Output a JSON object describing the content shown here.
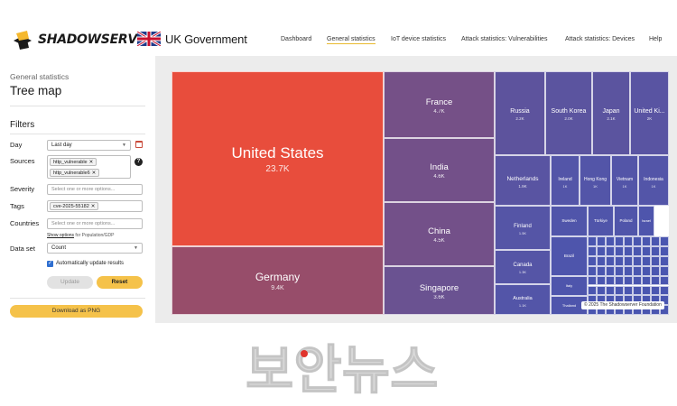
{
  "brand": {
    "logo_text": "SHADOWSERVER",
    "partner": "UK Government"
  },
  "nav": [
    {
      "label": "Dashboard",
      "active": false
    },
    {
      "label": "General statistics",
      "active": true
    },
    {
      "label": "IoT device statistics",
      "active": false
    },
    {
      "label": "Attack statistics: Vulnerabilities",
      "active": false
    },
    {
      "label": "Attack statistics: Devices",
      "active": false
    },
    {
      "label": "Help",
      "active": false
    }
  ],
  "sidebar": {
    "subtitle": "General statistics",
    "title": "Tree map",
    "filters_heading": "Filters",
    "day": {
      "label": "Day",
      "value": "Last day"
    },
    "sources": {
      "label": "Sources",
      "chips": [
        "http_vulnerable",
        "http_vulnerable6"
      ]
    },
    "severity": {
      "label": "Severity",
      "placeholder": "Select one or more options..."
    },
    "tags": {
      "label": "Tags",
      "chips": [
        "cve-2025-55182"
      ]
    },
    "countries": {
      "label": "Countries",
      "placeholder": "Select one or more options..."
    },
    "show_options": {
      "link": "Show options",
      "suffix": "for Population/GDP"
    },
    "dataset": {
      "label": "Data set",
      "value": "Count"
    },
    "auto_update": {
      "label": "Automatically update results",
      "checked": true
    },
    "update_button": "Update",
    "reset_button": "Reset",
    "download_button": "Download as PNG"
  },
  "treemap": {
    "colors": {
      "high": "#e84d3c",
      "mid": "#8a4d72",
      "low": "#4a56b0"
    },
    "cells": [
      {
        "name": "United States",
        "value": "23.7K",
        "level": 1.0
      },
      {
        "name": "Germany",
        "value": "9.4K",
        "level": 0.4
      },
      {
        "name": "France",
        "value": "4.7K",
        "level": 0.2
      },
      {
        "name": "India",
        "value": "4.6K",
        "level": 0.19
      },
      {
        "name": "China",
        "value": "4.5K",
        "level": 0.19
      },
      {
        "name": "Singapore",
        "value": "3.6K",
        "level": 0.15
      },
      {
        "name": "Russia",
        "value": "2.2K",
        "level": 0.09
      },
      {
        "name": "South Korea",
        "value": "2.0K",
        "level": 0.08
      },
      {
        "name": "Japan",
        "value": "2.1K",
        "level": 0.08
      },
      {
        "name": "United Ki...",
        "value": "2K",
        "level": 0.07
      },
      {
        "name": "Netherlands",
        "value": "1.9K",
        "level": 0.07
      },
      {
        "name": "Ireland",
        "value": "1K",
        "level": 0.04
      },
      {
        "name": "Hong Kong",
        "value": "1K",
        "level": 0.04
      },
      {
        "name": "Vietnam",
        "value": "1K",
        "level": 0.04
      },
      {
        "name": "Indonesia",
        "value": "1K",
        "level": 0.04
      },
      {
        "name": "Finland",
        "value": "1.5K",
        "level": 0.05
      },
      {
        "name": "Canada",
        "value": "1.3K",
        "level": 0.05
      },
      {
        "name": "Australia",
        "value": "1.1K",
        "level": 0.04
      },
      {
        "name": "Sweden",
        "value": "",
        "level": 0.03
      },
      {
        "name": "Türkiye",
        "value": "",
        "level": 0.03
      },
      {
        "name": "Poland",
        "value": "",
        "level": 0.03
      },
      {
        "name": "Israel",
        "value": "",
        "level": 0.02
      },
      {
        "name": "Brazil",
        "value": "",
        "level": 0.02
      },
      {
        "name": "Italy",
        "value": "",
        "level": 0.02
      },
      {
        "name": "Thailand",
        "value": "",
        "level": 0.02
      }
    ],
    "credit": "© 2025 The Shadowserver Foundation"
  },
  "watermark": {
    "text": "보안뉴스",
    "color": "#d8d8d8",
    "accent": "#e0332c"
  }
}
